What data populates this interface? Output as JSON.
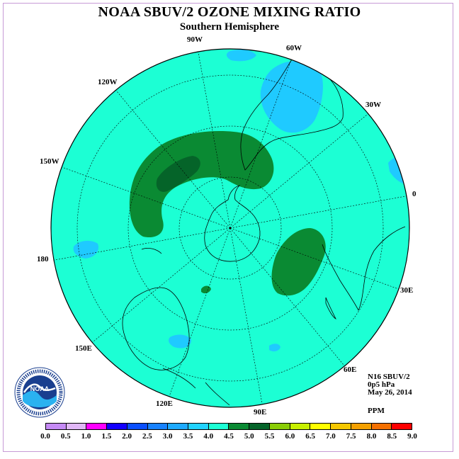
{
  "header": {
    "title": "NOAA SBUV/2 OZONE MIXING RATIO",
    "subtitle": "Southern Hemisphere"
  },
  "map": {
    "projection": "south polar stereographic",
    "longitude_labels": [
      "90W",
      "60W",
      "30W",
      "0",
      "30E",
      "60E",
      "90E",
      "120E",
      "150E",
      "180",
      "150W",
      "120W"
    ],
    "background_color": "#1cffd4",
    "contour_colors": {
      "3.0-3.5": "#1fcaff",
      "4.0-4.5": "#0a8a33",
      "4.5-5.0": "#056429"
    }
  },
  "info": {
    "satellite": "N16 SBUV/2",
    "level": "0p5 hPa",
    "date": "May 26, 2014",
    "units": "PPM"
  },
  "colorbar": {
    "ticks": [
      "0.0",
      "0.5",
      "1.0",
      "1.5",
      "2.0",
      "2.5",
      "3.0",
      "3.5",
      "4.0",
      "4.5",
      "5.0",
      "5.5",
      "6.0",
      "6.5",
      "7.0",
      "7.5",
      "8.0",
      "8.5",
      "9.0"
    ],
    "colors": [
      "#c58af5",
      "#e1b7f7",
      "#ff00ff",
      "#1400ff",
      "#0a4fff",
      "#1882ff",
      "#1eaaff",
      "#21d2ff",
      "#1cffd4",
      "#0a8a33",
      "#056429",
      "#8acd06",
      "#c8f000",
      "#ffff00",
      "#f5c800",
      "#f4a000",
      "#f57000",
      "#ff0000",
      "#6e4428"
    ]
  },
  "logo": {
    "text": "NOAA",
    "ring_text": "NATIONAL OCEANIC AND ATMOSPHERIC ADMINISTRATION · U.S. DEPARTMENT OF COMMERCE"
  }
}
